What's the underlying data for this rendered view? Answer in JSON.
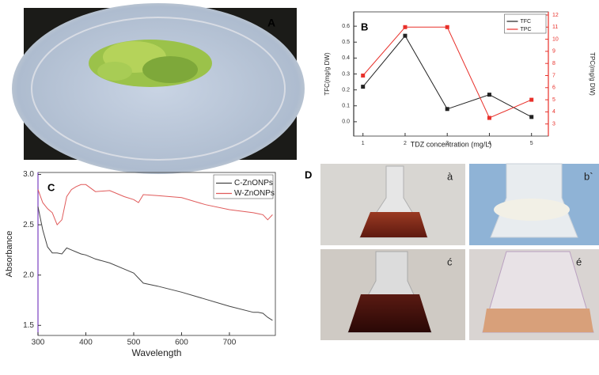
{
  "panels": {
    "a_label": "A",
    "d_label": "D",
    "photo_labels": [
      "à",
      "b`",
      "ć",
      "é"
    ]
  },
  "chart_data": [
    {
      "type": "line",
      "panel_label": "B",
      "x_label": "TDZ concentration (mg/L)",
      "y_label": "TFC(mg/g DW)",
      "y2_label": "TPC(mg/g DW)",
      "x": [
        1,
        2,
        3,
        4,
        5
      ],
      "xlim": [
        0.78,
        5.4
      ],
      "xticks": [
        1,
        2,
        3,
        4,
        5
      ],
      "ylim": [
        -0.09,
        0.69
      ],
      "yticks": [
        {
          "value": 0,
          "label": "0.0"
        },
        0.1,
        0.2,
        0.3,
        0.4,
        0.5,
        0.6
      ],
      "y2lim": [
        2,
        12.26
      ],
      "y2ticks": [
        3,
        4,
        5,
        6,
        7,
        8,
        9,
        10,
        11,
        12
      ],
      "legend": "top-right",
      "markers": true,
      "series": [
        {
          "name": "TFC",
          "color": "#222222",
          "values": [
            0.22,
            0.54,
            0.08,
            0.17,
            0.03
          ]
        },
        {
          "name": "TPC",
          "color": "#e8302a",
          "axis": "y2",
          "values": [
            7,
            11,
            11,
            3.5,
            5
          ]
        }
      ]
    },
    {
      "type": "line",
      "panel_label": "C",
      "x_label": "Wavelength",
      "y_label": "Absorbance",
      "x": [
        300,
        310,
        320,
        330,
        340,
        350,
        360,
        370,
        380,
        390,
        400,
        420,
        450,
        480,
        500,
        510,
        520,
        550,
        600,
        650,
        700,
        750,
        760,
        770,
        780,
        790
      ],
      "xlim": [
        300,
        796
      ],
      "xticks": [
        300,
        400,
        500,
        600,
        700
      ],
      "ylim": [
        1.4,
        3.02
      ],
      "yticks": [
        1.5,
        {
          "value": 2,
          "label": "2.0"
        },
        2.5,
        {
          "value": 3,
          "label": "3.0"
        }
      ],
      "legend": "top-right",
      "markers": false,
      "series": [
        {
          "name": "C-ZnONPs",
          "color": "#444444",
          "values": [
            2.68,
            2.45,
            2.28,
            2.22,
            2.22,
            2.21,
            2.27,
            2.25,
            2.23,
            2.21,
            2.2,
            2.16,
            2.12,
            2.06,
            2.02,
            1.97,
            1.92,
            1.89,
            1.83,
            1.76,
            1.69,
            1.63,
            1.63,
            1.62,
            1.58,
            1.55
          ]
        },
        {
          "name": "W-ZnONPs",
          "color": "#e05a5a",
          "values": [
            2.85,
            2.72,
            2.66,
            2.62,
            2.5,
            2.55,
            2.78,
            2.85,
            2.88,
            2.9,
            2.9,
            2.83,
            2.84,
            2.78,
            2.75,
            2.72,
            2.8,
            2.79,
            2.77,
            2.7,
            2.65,
            2.62,
            2.61,
            2.6,
            2.55,
            2.6
          ]
        }
      ]
    }
  ]
}
